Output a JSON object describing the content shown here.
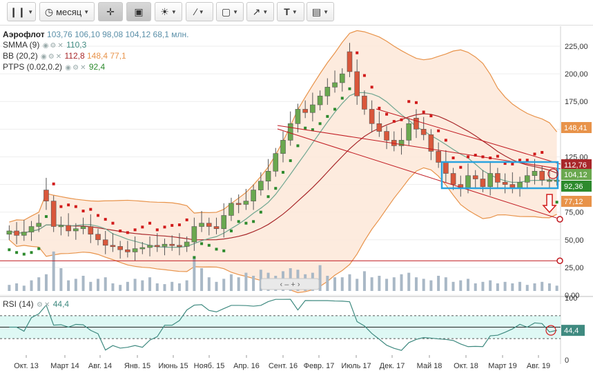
{
  "toolbar": {
    "period_label": "месяц",
    "text_tool_label": "T"
  },
  "legend": {
    "instrument": "Аэрофлот",
    "open": "103,76",
    "high": "106,10",
    "low": "98,08",
    "close": "104,12",
    "volume": "68,1 млн.",
    "smma_label": "SMMA (9)",
    "smma_value": "110,3",
    "bb_label": "BB (20,2)",
    "bb_mid": "112,8",
    "bb_upper": "148,4",
    "bb_lower": "77,1",
    "ptps_label": "PTPS (0.02,0.2)",
    "ptps_value": "92,4"
  },
  "rsi": {
    "label": "RSI (14)",
    "value": "44,4"
  },
  "colors": {
    "up": "#6aa84f",
    "down": "#d9573b",
    "bb_band": "#e8934a",
    "bb_fill": "#fde7d8",
    "smma": "#6fa690",
    "bb_mid": "#a8272a",
    "sar": "#d11a1a",
    "sar_up": "#2d8a2d",
    "volume": "#a9b8c6",
    "rsi_line": "#3f8a80",
    "rsi_fill": "#def8f4",
    "highlight_box": "#2aa3e0",
    "channel_line": "#c0181f"
  },
  "chart_data": {
    "type": "candlestick",
    "instrument": "Аэрофлот",
    "period": "месяц",
    "y_ticks": [
      "225,00",
      "200,00",
      "175,00",
      "150,00",
      "125,00",
      "100,00",
      "75,00",
      "50,00",
      "25,00",
      "0,00"
    ],
    "y_tick_values": [
      225,
      200,
      175,
      150,
      125,
      100,
      75,
      50,
      25,
      0
    ],
    "ylim": [
      0,
      240
    ],
    "x_ticks": [
      "Окт. 13",
      "Март 14",
      "Авг. 14",
      "Янв. 15",
      "Июнь 15",
      "Нояб. 15",
      "Апр. 16",
      "Сент. 16",
      "Февр. 17",
      "Июль 17",
      "Дек. 17",
      "Май 18",
      "Окт. 18",
      "Март 19",
      "Авг. 19"
    ],
    "price_tags": [
      {
        "label": "148,41",
        "value": 148.41,
        "color": "#e8934a"
      },
      {
        "label": "112,76",
        "value": 112.76,
        "color": "#a8272a"
      },
      {
        "label": "104,12",
        "value": 104.12,
        "color": "#6aa84f"
      },
      {
        "label": "92,36",
        "value": 92.36,
        "color": "#2d8a2d"
      },
      {
        "label": "77,12",
        "value": 77.12,
        "color": "#e8934a"
      }
    ],
    "support_level": 31,
    "closes": [
      58,
      54,
      57,
      62,
      65,
      85,
      62,
      63,
      58,
      60,
      62,
      55,
      50,
      45,
      44,
      41,
      39,
      42,
      43,
      45,
      44,
      46,
      45,
      44,
      48,
      62,
      65,
      62,
      60,
      72,
      83,
      82,
      85,
      95,
      103,
      112,
      128,
      140,
      155,
      168,
      165,
      172,
      180,
      188,
      192,
      200,
      202,
      180,
      168,
      155,
      148,
      140,
      135,
      140,
      155,
      150,
      145,
      130,
      120,
      110,
      100,
      97,
      108,
      105,
      98,
      110,
      102,
      100,
      97,
      102,
      108,
      112,
      104,
      104,
      104
    ],
    "opens": [
      55,
      58,
      54,
      57,
      62,
      95,
      85,
      62,
      63,
      58,
      60,
      62,
      55,
      50,
      45,
      44,
      41,
      39,
      42,
      43,
      45,
      44,
      46,
      45,
      44,
      48,
      62,
      65,
      62,
      60,
      72,
      83,
      82,
      85,
      95,
      103,
      112,
      128,
      140,
      155,
      168,
      165,
      172,
      180,
      188,
      192,
      220,
      202,
      180,
      168,
      155,
      148,
      140,
      135,
      140,
      160,
      150,
      145,
      130,
      120,
      110,
      100,
      97,
      108,
      105,
      98,
      110,
      102,
      100,
      97,
      102,
      108,
      112,
      104,
      104
    ],
    "volumes": [
      8,
      10,
      7,
      14,
      18,
      22,
      52,
      30,
      14,
      16,
      20,
      12,
      16,
      18,
      10,
      8,
      12,
      16,
      14,
      18,
      10,
      9,
      12,
      10,
      14,
      46,
      30,
      18,
      12,
      16,
      22,
      18,
      24,
      20,
      28,
      24,
      20,
      26,
      30,
      28,
      22,
      24,
      34,
      20,
      18,
      18,
      22,
      16,
      26,
      18,
      20,
      16,
      18,
      22,
      24,
      18,
      16,
      14,
      20,
      18,
      12,
      14,
      16,
      10,
      12,
      14,
      10,
      12,
      10,
      12,
      8,
      10,
      12,
      10,
      7
    ],
    "rsi_ylim": [
      0,
      100
    ],
    "rsi_ticks": [
      "100",
      "0"
    ],
    "rsi_levels": [
      70,
      30
    ],
    "rsi_value": 44.4
  }
}
